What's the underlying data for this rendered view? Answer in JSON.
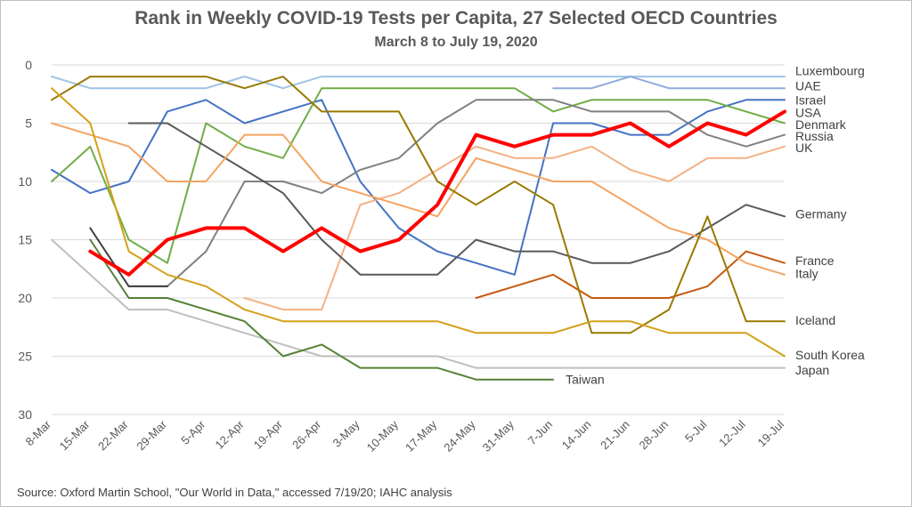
{
  "chart_data": {
    "type": "line",
    "title": "Rank in Weekly COVID-19 Tests per Capita, 27 Selected OECD Countries",
    "subtitle": "March 8 to July 19, 2020",
    "xlabel": "",
    "ylabel": "",
    "ylim": [
      0,
      30
    ],
    "y_inverted": true,
    "y_ticks": [
      0,
      5,
      10,
      15,
      20,
      25,
      30
    ],
    "grid": "horizontal",
    "categories": [
      "8-Mar",
      "15-Mar",
      "22-Mar",
      "29-Mar",
      "5-Apr",
      "12-Apr",
      "19-Apr",
      "26-Apr",
      "3-May",
      "10-May",
      "17-May",
      "24-May",
      "31-May",
      "7-Jun",
      "14-Jun",
      "21-Jun",
      "28-Jun",
      "5-Jul",
      "12-Jul",
      "19-Jul"
    ],
    "series": [
      {
        "name": "Luxembourg",
        "color": "#9dc3e6",
        "width": 2,
        "values": [
          1,
          2,
          2,
          2,
          2,
          1,
          2,
          1,
          1,
          1,
          1,
          1,
          1,
          1,
          1,
          1,
          1,
          1,
          1,
          1
        ]
      },
      {
        "name": "UAE",
        "color": "#8faadc",
        "width": 2,
        "values": [
          null,
          null,
          null,
          null,
          null,
          null,
          null,
          null,
          null,
          null,
          null,
          null,
          null,
          2,
          2,
          1,
          2,
          2,
          2,
          2
        ]
      },
      {
        "name": "Israel",
        "color": "#4472c4",
        "width": 2,
        "values": [
          9,
          11,
          10,
          4,
          3,
          5,
          4,
          3,
          10,
          14,
          16,
          17,
          18,
          5,
          5,
          6,
          6,
          4,
          3,
          3
        ]
      },
      {
        "name": "USA",
        "color": "#ff0000",
        "width": 4,
        "values": [
          null,
          16,
          18,
          15,
          14,
          14,
          16,
          14,
          16,
          15,
          12,
          6,
          7,
          6,
          6,
          5,
          7,
          5,
          6,
          4
        ]
      },
      {
        "name": "Denmark",
        "color": "#70ad47",
        "width": 2,
        "values": [
          10,
          7,
          15,
          17,
          5,
          7,
          8,
          2,
          2,
          2,
          2,
          2,
          2,
          4,
          3,
          3,
          3,
          3,
          4,
          5
        ]
      },
      {
        "name": "Russia",
        "color": "#808080",
        "width": 2,
        "values": [
          null,
          null,
          19,
          19,
          16,
          10,
          10,
          11,
          9,
          8,
          5,
          3,
          3,
          3,
          4,
          4,
          4,
          6,
          7,
          6
        ]
      },
      {
        "name": "UK",
        "color": "#f4b183",
        "width": 2,
        "values": [
          null,
          null,
          null,
          null,
          null,
          20,
          21,
          21,
          12,
          11,
          9,
          7,
          8,
          8,
          7,
          9,
          10,
          8,
          8,
          7
        ]
      },
      {
        "name": "Germany",
        "color": "#595959",
        "width": 2,
        "values": [
          null,
          null,
          5,
          5,
          7,
          9,
          11,
          15,
          18,
          18,
          18,
          15,
          16,
          16,
          17,
          17,
          16,
          14,
          12,
          13
        ]
      },
      {
        "name": "France",
        "color": "#c55a11",
        "width": 2,
        "values": [
          null,
          null,
          null,
          null,
          null,
          null,
          null,
          null,
          null,
          null,
          null,
          20,
          19,
          18,
          20,
          20,
          20,
          19,
          16,
          17
        ]
      },
      {
        "name": "Italy",
        "color": "#f4a460",
        "width": 2,
        "values": [
          5,
          6,
          7,
          10,
          10,
          6,
          6,
          10,
          11,
          12,
          13,
          8,
          9,
          10,
          10,
          12,
          14,
          15,
          17,
          18
        ]
      },
      {
        "name": "Iceland",
        "color": "#997a00",
        "width": 2,
        "values": [
          3,
          1,
          1,
          1,
          1,
          2,
          1,
          4,
          4,
          4,
          10,
          12,
          10,
          12,
          23,
          23,
          21,
          13,
          22,
          22
        ]
      },
      {
        "name": "South Korea",
        "color": "#d4a017",
        "width": 2,
        "values": [
          2,
          5,
          16,
          18,
          19,
          21,
          22,
          22,
          22,
          22,
          22,
          23,
          23,
          23,
          22,
          22,
          23,
          23,
          23,
          25
        ]
      },
      {
        "name": "Japan",
        "color": "#bfbfbf",
        "width": 2,
        "values": [
          15,
          18,
          21,
          21,
          22,
          23,
          24,
          25,
          25,
          25,
          25,
          26,
          26,
          26,
          26,
          26,
          26,
          26,
          26,
          26
        ]
      },
      {
        "name": "Taiwan",
        "color": "#548235",
        "width": 2,
        "values": [
          null,
          15,
          20,
          20,
          21,
          22,
          25,
          24,
          26,
          26,
          26,
          27,
          27,
          27,
          null,
          null,
          null,
          null,
          null,
          null
        ]
      },
      {
        "name": "",
        "color": "#404040",
        "width": 2,
        "values": [
          null,
          14,
          19,
          19,
          null,
          null,
          null,
          null,
          null,
          null,
          null,
          null,
          null,
          null,
          null,
          null,
          null,
          null,
          null,
          null
        ]
      }
    ],
    "labels": [
      {
        "series": "Luxembourg",
        "text": "Luxembourg",
        "y": 0.5
      },
      {
        "series": "UAE",
        "text": "UAE",
        "y": 1.8
      },
      {
        "series": "Israel",
        "text": "Israel",
        "y": 3.0
      },
      {
        "series": "USA",
        "text": "USA",
        "y": 4.1
      },
      {
        "series": "Denmark",
        "text": "Denmark",
        "y": 5.1
      },
      {
        "series": "Russia",
        "text": "Russia",
        "y": 6.1
      },
      {
        "series": "UK",
        "text": "UK",
        "y": 7.1
      },
      {
        "series": "Germany",
        "text": "Germany",
        "y": 12.8
      },
      {
        "series": "France",
        "text": "France",
        "y": 16.8
      },
      {
        "series": "Italy",
        "text": "Italy",
        "y": 17.9
      },
      {
        "series": "Iceland",
        "text": "Iceland",
        "y": 21.9
      },
      {
        "series": "South Korea",
        "text": "South Korea",
        "y": 24.9
      },
      {
        "series": "Japan",
        "text": "Japan",
        "y": 26.2
      }
    ],
    "inline_labels": [
      {
        "text": "Taiwan",
        "x_index": 13,
        "y": 27
      }
    ]
  },
  "source": "Source:  Oxford Martin School, \"Our World in Data,\" accessed 7/19/20; IAHC analysis"
}
